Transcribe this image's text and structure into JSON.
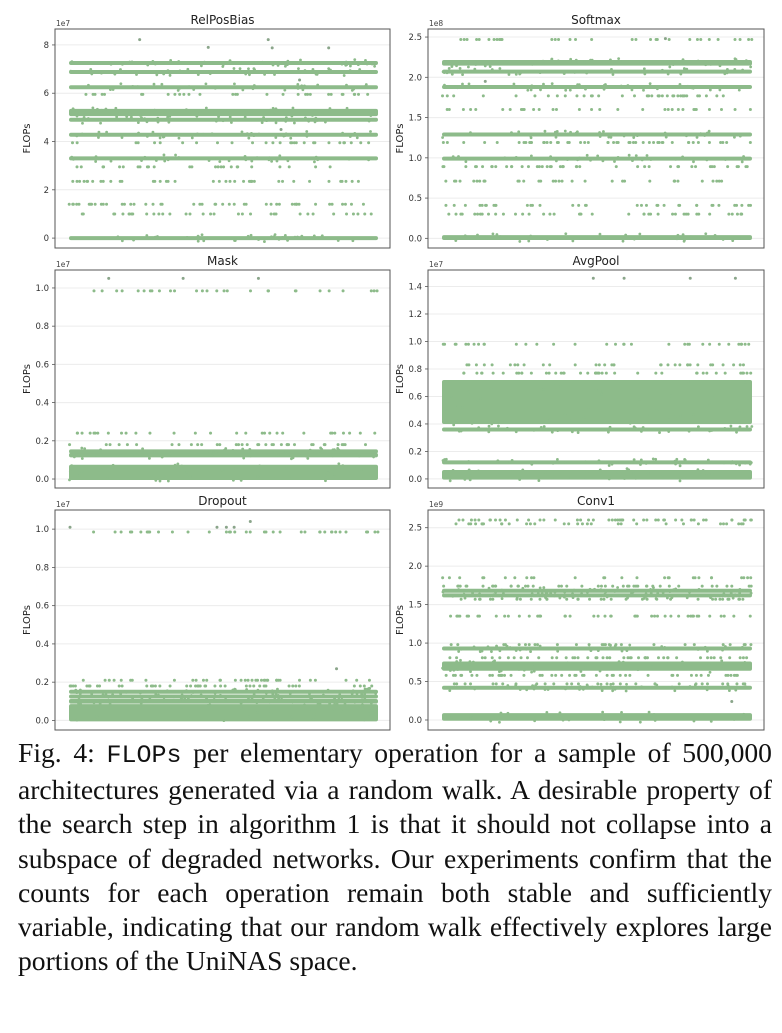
{
  "caption": {
    "label": "Fig. 4:",
    "code": "FLOPs",
    "text": "per elementary operation for a sample of 500,000 architectures generated via a random walk. A desirable property of the search step in algorithm 1 is that it should not collapse into a subspace of degraded networks. Our experiments confirm that the counts for each operation remain both stable and sufficiently variable, indicating that our random walk effectively explores large portions of the UniNAS space."
  },
  "colors": {
    "points": "#8dbb8a",
    "frame": "#555555",
    "grid": "#ececec"
  },
  "chart_data": [
    {
      "type": "scatter",
      "title": "RelPosBias",
      "ylabel": "FLOPs",
      "multiplier": "1e7",
      "ylim": [
        -0.41,
        8.66
      ],
      "yticks": [
        "0",
        "2",
        "4",
        "6",
        "8"
      ],
      "ytick_values": [
        0,
        2,
        4,
        6,
        8
      ],
      "grid": true,
      "dense_bands": [
        [
          0,
          0.06
        ],
        [
          3.3,
          0.08
        ],
        [
          4.28,
          0.08
        ],
        [
          4.9,
          0.07
        ],
        [
          5.2,
          0.15
        ],
        [
          6.25,
          0.08
        ],
        [
          6.88,
          0.06
        ],
        [
          7.25,
          0.07
        ]
      ],
      "sparse_levels": [
        5.95,
        3.95,
        2.95,
        2.35,
        1.4,
        1.0
      ],
      "outliers": [
        7.88,
        8.22,
        8.22,
        7.88,
        7.9,
        6.55,
        4.5
      ]
    },
    {
      "type": "scatter",
      "title": "Softmax",
      "ylabel": "FLOPs",
      "multiplier": "1e8",
      "ylim": [
        -0.12,
        2.6
      ],
      "yticks": [
        "0.0",
        "0.5",
        "1.0",
        "1.5",
        "2.0",
        "2.5"
      ],
      "ytick_values": [
        0,
        0.5,
        1,
        1.5,
        2,
        2.5
      ],
      "grid": true,
      "dense_bands": [
        [
          0.01,
          0.03
        ],
        [
          0.99,
          0.02
        ],
        [
          1.29,
          0.02
        ],
        [
          1.88,
          0.02
        ],
        [
          2.07,
          0.015
        ],
        [
          2.18,
          0.035
        ]
      ],
      "sparse_levels": [
        2.47,
        1.77,
        1.6,
        1.19,
        0.89,
        0.71,
        0.41,
        0.3
      ],
      "outliers": [
        1.95,
        2.48
      ]
    },
    {
      "type": "scatter",
      "title": "Mask",
      "ylabel": "FLOPs",
      "multiplier": "1e7",
      "ylim": [
        -0.047,
        1.094
      ],
      "yticks": [
        "0.0",
        "0.2",
        "0.4",
        "0.6",
        "0.8",
        "1.0"
      ],
      "ytick_values": [
        0,
        0.2,
        0.4,
        0.6,
        0.8,
        1.0
      ],
      "grid": true,
      "dense_bands": [
        [
          0.035,
          0.04
        ],
        [
          0.125,
          0.012
        ],
        [
          0.145,
          0.006
        ]
      ],
      "sparse_levels": [
        0.985,
        0.24,
        0.18
      ],
      "outliers": [
        1.05,
        1.05,
        1.05
      ]
    },
    {
      "type": "scatter",
      "title": "AvgPool",
      "ylabel": "FLOPs",
      "multiplier": "1e7",
      "ylim": [
        -0.066,
        1.52
      ],
      "yticks": [
        "0.0",
        "0.2",
        "0.4",
        "0.6",
        "0.8",
        "1.0",
        "1.2",
        "1.4"
      ],
      "ytick_values": [
        0,
        0.2,
        0.4,
        0.6,
        0.8,
        1.0,
        1.2,
        1.4
      ],
      "grid": true,
      "dense_bands": [
        [
          0.03,
          0.035
        ],
        [
          0.12,
          0.01
        ],
        [
          0.36,
          0.012
        ],
        [
          0.56,
          0.16
        ]
      ],
      "sparse_levels": [
        0.98,
        0.83,
        0.77
      ],
      "outliers": [
        1.46,
        1.46,
        1.46,
        1.46
      ]
    },
    {
      "type": "scatter",
      "title": "Dropout",
      "ylabel": "FLOPs",
      "multiplier": "1e7",
      "ylim": [
        -0.05,
        1.1
      ],
      "yticks": [
        "0.0",
        "0.2",
        "0.4",
        "0.6",
        "0.8",
        "1.0"
      ],
      "ytick_values": [
        0,
        0.2,
        0.4,
        0.6,
        0.8,
        1.0
      ],
      "grid": true,
      "dense_bands": [
        [
          0.04,
          0.045
        ],
        [
          0.1,
          0.012
        ],
        [
          0.125,
          0.008
        ],
        [
          0.15,
          0.007
        ]
      ],
      "sparse_levels": [
        0.985,
        0.21,
        0.18
      ],
      "outliers": [
        1.04,
        1.01,
        1.01,
        1.01,
        1.01,
        0.27
      ]
    },
    {
      "type": "scatter",
      "title": "Conv1",
      "ylabel": "FLOPs",
      "multiplier": "1e9",
      "ylim": [
        -0.13,
        2.73
      ],
      "yticks": [
        "0.0",
        "0.5",
        "1.0",
        "1.5",
        "2.0",
        "2.5"
      ],
      "ytick_values": [
        0,
        0.5,
        1,
        1.5,
        2,
        2.5
      ],
      "grid": true,
      "dense_bands": [
        [
          0.04,
          0.05
        ],
        [
          0.42,
          0.015
        ],
        [
          0.7,
          0.06
        ],
        [
          0.93,
          0.015
        ],
        [
          1.62,
          0.015
        ],
        [
          1.68,
          0.015
        ]
      ],
      "sparse_levels": [
        2.55,
        2.6,
        1.85,
        1.74,
        1.57,
        1.35,
        0.98,
        0.81,
        0.58,
        0.47
      ],
      "outliers": [
        0.24
      ]
    }
  ]
}
